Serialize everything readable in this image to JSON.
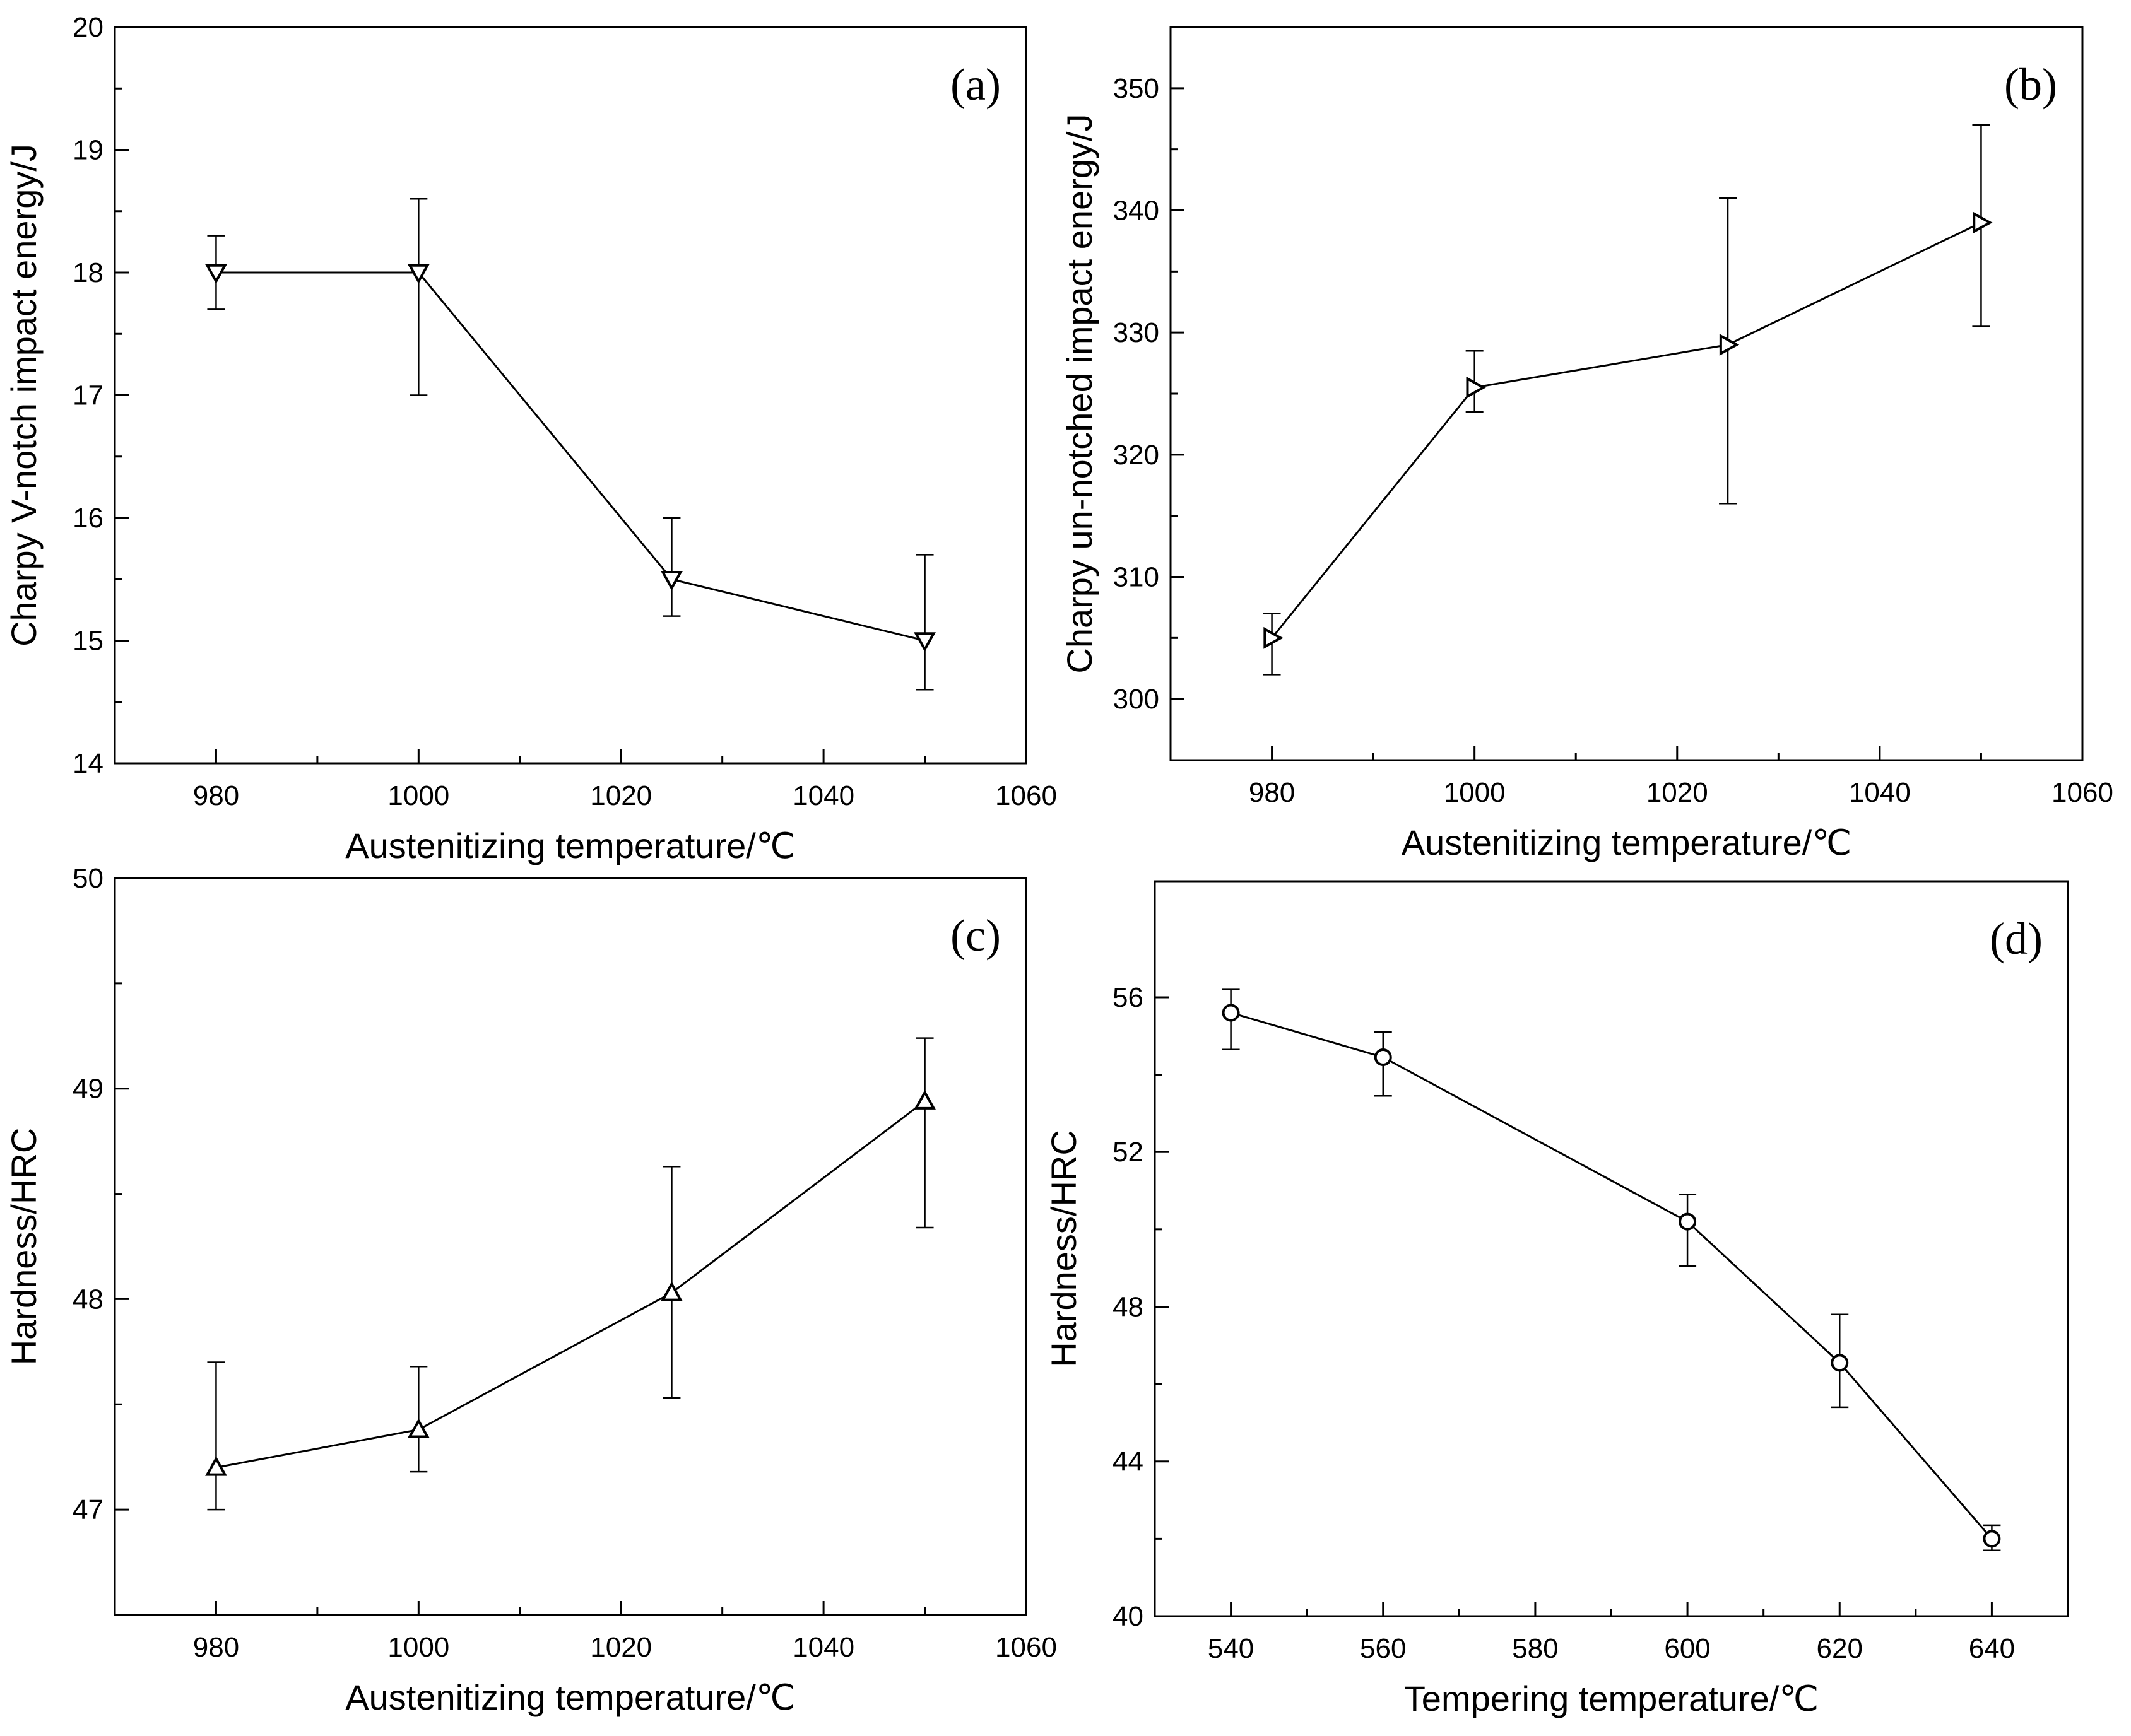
{
  "chart_data": [
    {
      "panel": "(a)",
      "type": "line",
      "marker": "triangle-down",
      "xlabel": "Austenitizing temperature/℃",
      "ylabel": "Charpy V-notch impact energy/J",
      "xlim": [
        970,
        1060
      ],
      "ylim": [
        14,
        20
      ],
      "xticks": [
        980,
        1000,
        1020,
        1040,
        1060
      ],
      "yticks": [
        14,
        15,
        16,
        17,
        18,
        19,
        20
      ],
      "x": [
        980,
        1000,
        1025,
        1050
      ],
      "y": [
        18,
        18,
        15.5,
        15
      ],
      "err_low": [
        17.7,
        17.0,
        15.2,
        14.6
      ],
      "err_high": [
        18.3,
        18.6,
        16.0,
        15.7
      ]
    },
    {
      "panel": "(b)",
      "type": "line",
      "marker": "triangle-right",
      "xlabel": "Austenitizing temperature/℃",
      "ylabel": "Charpy un-notched impact energy/J",
      "xlim": [
        970,
        1060
      ],
      "ylim": [
        295,
        355
      ],
      "xticks": [
        980,
        1000,
        1020,
        1040,
        1060
      ],
      "yticks": [
        300,
        310,
        320,
        330,
        340,
        350
      ],
      "x": [
        980,
        1000,
        1025,
        1050
      ],
      "y": [
        305,
        325.5,
        329,
        339
      ],
      "err_low": [
        302,
        323.5,
        316,
        330.5
      ],
      "err_high": [
        307,
        328.5,
        341,
        347
      ]
    },
    {
      "panel": "(c)",
      "type": "line",
      "marker": "triangle-up",
      "xlabel": "Austenitizing temperature/℃",
      "ylabel": "Hardness/HRC",
      "xlim": [
        970,
        1060
      ],
      "ylim": [
        46.5,
        50
      ],
      "xticks": [
        980,
        1000,
        1020,
        1040,
        1060
      ],
      "yticks": [
        47,
        48,
        49,
        50
      ],
      "x": [
        980,
        1000,
        1025,
        1050
      ],
      "y": [
        47.2,
        47.38,
        48.03,
        48.94
      ],
      "err_low": [
        47.0,
        47.18,
        47.53,
        48.34
      ],
      "err_high": [
        47.7,
        47.68,
        48.63,
        49.24
      ]
    },
    {
      "panel": "(d)",
      "type": "line",
      "marker": "circle",
      "xlabel": "Tempering temperature/℃",
      "ylabel": "Hardness/HRC",
      "xlim": [
        530,
        650
      ],
      "ylim": [
        40,
        59
      ],
      "xticks": [
        540,
        560,
        580,
        600,
        620,
        640
      ],
      "yticks": [
        40,
        44,
        48,
        52,
        56
      ],
      "x": [
        540,
        560,
        600,
        620,
        640
      ],
      "y": [
        55.6,
        54.45,
        50.2,
        46.55,
        42.0
      ],
      "err_low": [
        54.65,
        53.45,
        49.05,
        45.4,
        41.7
      ],
      "err_high": [
        56.2,
        55.1,
        50.9,
        47.8,
        42.35
      ]
    }
  ]
}
